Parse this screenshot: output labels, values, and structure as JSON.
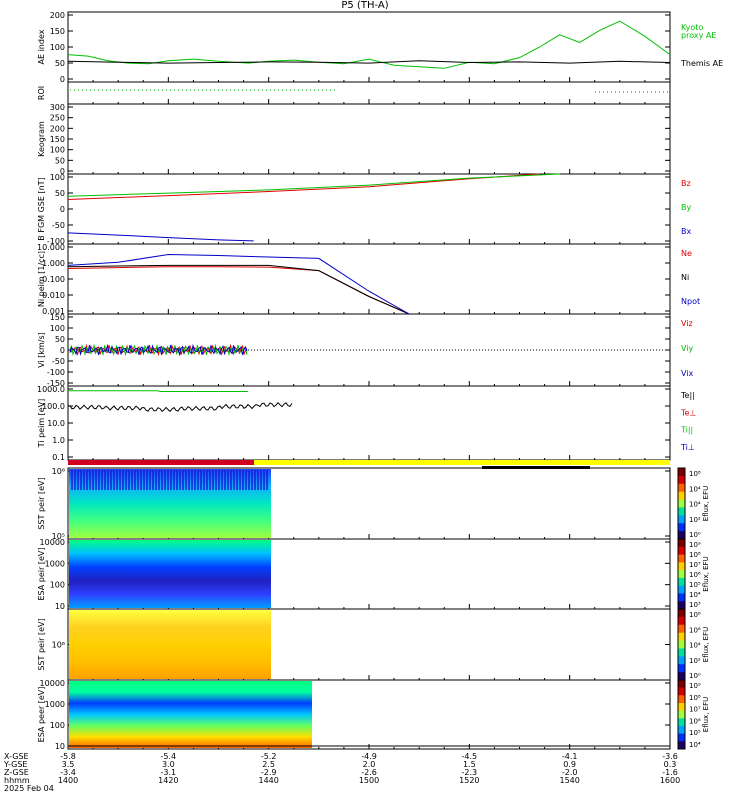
{
  "title": "P5 (TH-A)",
  "colors": {
    "red": "#e00000",
    "green": "#00c000",
    "blue": "#0000c8",
    "black": "#000000",
    "yellow": "#ffff00",
    "kyoto": "#00cc00"
  },
  "panels": [
    {
      "id": "ae",
      "ylabel": "AE index",
      "yticks": [
        "200",
        "150",
        "100",
        "50",
        "0"
      ],
      "right_labels": [
        {
          "text": "Kyoto",
          "color": "green"
        },
        {
          "text": "proxy AE",
          "color": "green"
        },
        {
          "text": "Themis AE",
          "color": "black"
        }
      ]
    },
    {
      "id": "roi",
      "ylabel": "ROI",
      "yticks": [],
      "right_labels": []
    },
    {
      "id": "keogram",
      "ylabel": "Keogram",
      "yticks": [
        "300",
        "250",
        "200",
        "150",
        "100",
        "50",
        "0"
      ],
      "right_labels": []
    },
    {
      "id": "bfgm",
      "ylabel": "B FGM GSE [nT]",
      "yticks": [
        "100",
        "50",
        "0",
        "-50",
        "-100"
      ],
      "right_labels": [
        {
          "text": "Bz",
          "color": "red"
        },
        {
          "text": "By",
          "color": "green"
        },
        {
          "text": "Bx",
          "color": "blue"
        }
      ]
    },
    {
      "id": "ni",
      "ylabel": "Ni peim [1/cc]",
      "yticks": [
        "10.000",
        "1.000",
        "0.100",
        "0.010",
        "0.001"
      ],
      "right_labels": [
        {
          "text": "Ne",
          "color": "red"
        },
        {
          "text": "Ni",
          "color": "black"
        },
        {
          "text": "Npot",
          "color": "blue"
        }
      ]
    },
    {
      "id": "vi",
      "ylabel": "Vi [km/s]",
      "yticks": [
        "150",
        "100",
        "50",
        "0",
        "-50",
        "-100",
        "-150"
      ],
      "right_labels": [
        {
          "text": "Viz",
          "color": "red"
        },
        {
          "text": "Viy",
          "color": "green"
        },
        {
          "text": "Vix",
          "color": "blue"
        }
      ]
    },
    {
      "id": "ti",
      "ylabel": "Ti peim [eV]",
      "yticks": [
        "1000.0",
        "100.0",
        "10.0",
        "1.0",
        "0.1"
      ],
      "right_labels": [
        {
          "text": "Te||",
          "color": "black"
        },
        {
          "text": "Te⊥",
          "color": "red"
        },
        {
          "text": "Ti||",
          "color": "green"
        },
        {
          "text": "Ti⊥",
          "color": "blue"
        }
      ]
    },
    {
      "id": "sst_e",
      "ylabel": "SST peir [eV]",
      "yticks": [
        "10⁶",
        "10⁵"
      ],
      "right_labels": [],
      "cbar_ticks": [
        "10⁸",
        "10⁴",
        "10⁴",
        "10²",
        "10⁰"
      ],
      "cbar_label": "Eflux, EFU"
    },
    {
      "id": "esa_i",
      "ylabel": "ESA peir [eV]",
      "yticks": [
        "10000",
        "1000",
        "100",
        "10"
      ],
      "right_labels": [],
      "cbar_ticks": [
        "10⁹",
        "10⁸",
        "10⁷",
        "10⁶",
        "10⁵",
        "10⁴",
        "10³"
      ],
      "cbar_label": "Eflux, EFU"
    },
    {
      "id": "sst_i",
      "ylabel": "SST peir [eV]",
      "yticks": [
        "10⁶"
      ],
      "right_labels": [],
      "cbar_ticks": [
        "10⁸",
        "10⁶",
        "10⁴",
        "10²",
        "10⁰"
      ],
      "cbar_label": "Eflux, EFU"
    },
    {
      "id": "esa_e",
      "ylabel": "ESA peer [eV]",
      "yticks": [
        "10000",
        "1000",
        "100",
        "10"
      ],
      "right_labels": [],
      "cbar_ticks": [
        "10⁹",
        "10⁸",
        "10⁷",
        "10⁶",
        "10⁵",
        "10⁴"
      ],
      "cbar_label": "Eflux, EFU"
    }
  ],
  "xaxis": {
    "row_labels": [
      "X-GSE",
      "Y-GSE",
      "Z-GSE",
      "hhmm",
      "2025 Feb 04"
    ],
    "ticks": [
      {
        "x": "-5.8",
        "y": "3.5",
        "z": "-3.4",
        "t": "1400"
      },
      {
        "x": "-5.4",
        "y": "3.0",
        "z": "-3.1",
        "t": "1420"
      },
      {
        "x": "-5.2",
        "y": "2.5",
        "z": "-2.9",
        "t": "1440"
      },
      {
        "x": "-4.9",
        "y": "2.0",
        "z": "-2.6",
        "t": "1500"
      },
      {
        "x": "-4.5",
        "y": "1.5",
        "z": "-2.3",
        "t": "1520"
      },
      {
        "x": "-4.1",
        "y": "0.9",
        "z": "-2.0",
        "t": "1540"
      },
      {
        "x": "-3.6",
        "y": "0.3",
        "z": "-1.6",
        "t": "1600"
      }
    ]
  },
  "chart_data": [
    {
      "type": "line",
      "panel": "AE index",
      "series": [
        {
          "name": "Kyoto proxy AE",
          "color": "green",
          "x": [
            1400,
            1404,
            1408,
            1412,
            1416,
            1420,
            1425,
            1430,
            1436,
            1440,
            1445,
            1450,
            1455,
            1500,
            1505,
            1510,
            1515,
            1520,
            1525,
            1530,
            1534,
            1538,
            1542,
            1546,
            1550,
            1555,
            1600
          ],
          "y": [
            70,
            65,
            50,
            42,
            40,
            50,
            55,
            48,
            42,
            48,
            52,
            45,
            40,
            55,
            35,
            30,
            25,
            45,
            40,
            60,
            95,
            135,
            110,
            150,
            180,
            130,
            70
          ]
        },
        {
          "name": "Themis AE",
          "color": "black",
          "x": [
            1400,
            1410,
            1420,
            1430,
            1440,
            1450,
            1500,
            1510,
            1520,
            1530,
            1540,
            1550,
            1600
          ],
          "y": [
            48,
            45,
            42,
            44,
            46,
            45,
            42,
            50,
            44,
            46,
            42,
            48,
            44
          ]
        }
      ],
      "ylim": [
        -20,
        210
      ]
    },
    {
      "type": "line",
      "panel": "B FGM GSE",
      "series": [
        {
          "name": "Bz",
          "color": "red",
          "x": [
            1400,
            1420,
            1440,
            1500,
            1520,
            1534
          ],
          "y": [
            30,
            42,
            55,
            70,
            95,
            110
          ]
        },
        {
          "name": "By",
          "color": "green",
          "x": [
            1400,
            1420,
            1440,
            1500,
            1520,
            1538
          ],
          "y": [
            40,
            50,
            60,
            75,
            97,
            110
          ]
        },
        {
          "name": "Bx",
          "color": "blue",
          "x": [
            1400,
            1410,
            1420,
            1430,
            1437
          ],
          "y": [
            -75,
            -82,
            -90,
            -97,
            -100
          ]
        }
      ],
      "ylim": [
        -110,
        110
      ]
    },
    {
      "type": "line",
      "panel": "Ni",
      "series": [
        {
          "name": "Ne",
          "color": "red",
          "x": [
            1400,
            1410,
            1420,
            1430,
            1440,
            1450,
            1500,
            1508
          ],
          "y": [
            0.4,
            0.45,
            0.5,
            0.5,
            0.48,
            0.3,
            0.01,
            0.001
          ]
        },
        {
          "name": "Ni",
          "color": "black",
          "x": [
            1400,
            1410,
            1420,
            1430,
            1440,
            1450,
            1500,
            1508
          ],
          "y": [
            0.5,
            0.55,
            0.6,
            0.6,
            0.6,
            0.3,
            0.01,
            0.001
          ]
        },
        {
          "name": "Npot",
          "color": "blue",
          "x": [
            1400,
            1410,
            1420,
            1430,
            1440,
            1450,
            1500,
            1508
          ],
          "y": [
            0.6,
            0.9,
            2.5,
            2.2,
            1.8,
            1.5,
            0.02,
            0.001
          ]
        }
      ],
      "ylim": [
        0.001,
        10
      ]
    },
    {
      "type": "line",
      "panel": "Vi",
      "series": [
        {
          "name": "Viz",
          "color": "red",
          "x": [
            1400,
            1420,
            1436
          ],
          "y": [
            0,
            0,
            0
          ]
        },
        {
          "name": "Viy",
          "color": "green",
          "x": [
            1400,
            1420,
            1436
          ],
          "y": [
            0,
            0,
            0
          ]
        },
        {
          "name": "Vix",
          "color": "blue",
          "x": [
            1400,
            1420,
            1436
          ],
          "y": [
            0,
            0,
            0
          ]
        }
      ],
      "ylim": [
        -160,
        160
      ]
    },
    {
      "type": "line",
      "panel": "Ti",
      "series": [
        {
          "name": "Te||",
          "color": "black",
          "x": [
            1400,
            1410,
            1420,
            1430,
            1436,
            1440,
            1445
          ],
          "y": [
            180,
            160,
            130,
            150,
            200,
            260,
            280
          ]
        },
        {
          "name": "Ti||",
          "color": "green",
          "x": [
            1400,
            1420,
            1436
          ],
          "y": [
            2000,
            1800,
            1700
          ]
        }
      ],
      "ylim": [
        0.08,
        4000
      ]
    }
  ]
}
